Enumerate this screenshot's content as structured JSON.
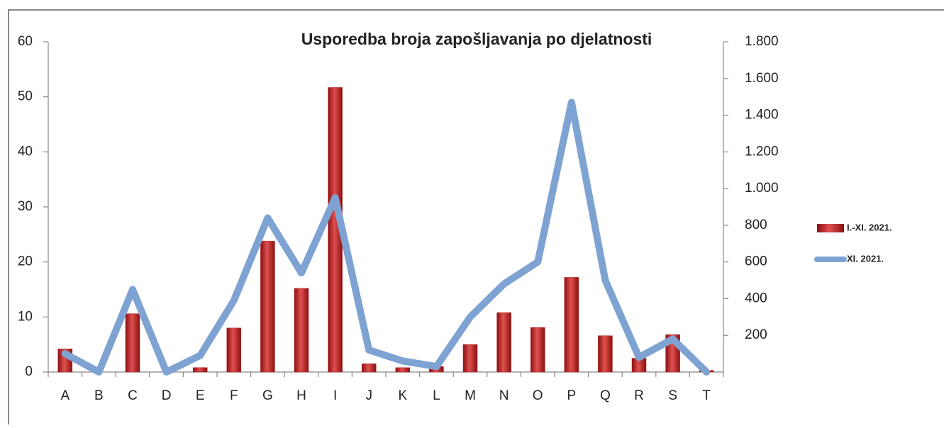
{
  "chart_data": {
    "type": "bar-line",
    "title": "Usporedba broja zapošljavanja po djelatnosti",
    "categories": [
      "A",
      "B",
      "C",
      "D",
      "E",
      "F",
      "G",
      "H",
      "I",
      "J",
      "K",
      "L",
      "M",
      "N",
      "O",
      "P",
      "Q",
      "R",
      "S",
      "T"
    ],
    "series": [
      {
        "name": "I.-XI. 2021.",
        "type": "bar",
        "color": "#b22222",
        "axis": "y",
        "values": [
          4.2,
          0,
          10.6,
          0,
          0.8,
          8,
          23.8,
          15.2,
          51.7,
          1.5,
          0.8,
          1,
          5,
          10.8,
          8.1,
          17.2,
          6.6,
          2.5,
          6.8,
          0.3
        ]
      },
      {
        "name": "XI. 2021.",
        "type": "line",
        "color": "#7ea3d3",
        "axis": "y2",
        "values": [
          100,
          0,
          450,
          0,
          90,
          390,
          840,
          540,
          950,
          120,
          60,
          30,
          300,
          480,
          600,
          1470,
          500,
          80,
          180,
          0
        ]
      }
    ],
    "ylim": [
      0,
      60
    ],
    "yticks": [
      0,
      10,
      20,
      30,
      40,
      50,
      60
    ],
    "y2lim": [
      0,
      1800
    ],
    "y2ticks": [
      200,
      400,
      600,
      800,
      {
        "value": 1000,
        "label": "1.000"
      },
      {
        "value": 1200,
        "label": "1.200"
      },
      {
        "value": 1400,
        "label": "1.400"
      },
      {
        "value": 1600,
        "label": "1.600"
      },
      {
        "value": 1800,
        "label": "1.800"
      }
    ],
    "legend": "right"
  }
}
